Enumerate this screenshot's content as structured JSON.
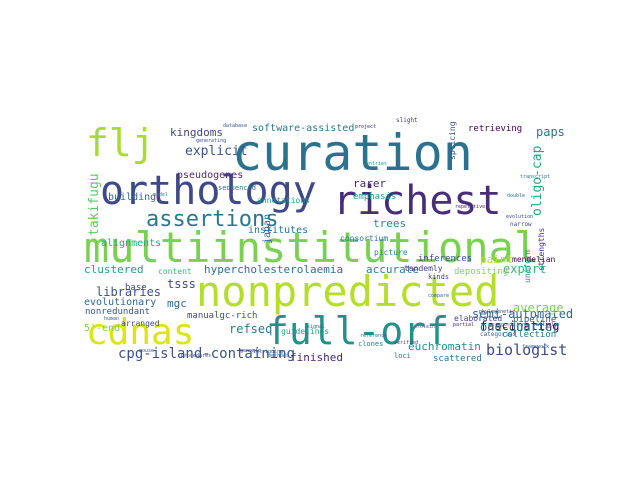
{
  "word_cloud": {
    "colormap": "viridis",
    "background": "#ffffff",
    "words": [
      {
        "text": "multiinstitutional",
        "color": "#7ad151"
      },
      {
        "text": "curation",
        "color": "#2c728e"
      },
      {
        "text": "nonpredicted",
        "color": "#b5de2b"
      },
      {
        "text": "orthology",
        "color": "#3e4989"
      },
      {
        "text": "full-orf",
        "color": "#21918c"
      },
      {
        "text": "richest",
        "color": "#472d7b"
      },
      {
        "text": "flj",
        "color": "#a8db34"
      },
      {
        "text": "cdnas",
        "color": "#dde318"
      },
      {
        "text": "assertions",
        "color": "#2a788e"
      },
      {
        "text": "cpg-island-containing",
        "color": "#3b528b"
      },
      {
        "text": "hypercholesterolaemia",
        "color": "#2c728e"
      },
      {
        "text": "biologist",
        "color": "#3e4989"
      },
      {
        "text": "oligo-cap",
        "color": "#22a884"
      },
      {
        "text": "takifugu",
        "color": "#5ec962"
      },
      {
        "text": "kingdoms",
        "color": "#414487"
      },
      {
        "text": "software-assisted",
        "color": "#2a788e"
      },
      {
        "text": "explicit",
        "color": "#3b528b"
      },
      {
        "text": "pseudogenes",
        "color": "#482878"
      },
      {
        "text": "semi-automated",
        "color": "#31688e"
      },
      {
        "text": "fascinating",
        "color": "#440154"
      },
      {
        "text": "accurate",
        "color": "#26828e"
      },
      {
        "text": "clustered",
        "color": "#1f9e89"
      },
      {
        "text": "libraries",
        "color": "#3b528b"
      },
      {
        "text": "evolutionary",
        "color": "#31688e"
      },
      {
        "text": "refseq",
        "color": "#2a788e"
      },
      {
        "text": "one-quarter",
        "color": "#2c728e"
      },
      {
        "text": "euchromatin",
        "color": "#21918c"
      },
      {
        "text": "finished",
        "color": "#482878"
      },
      {
        "text": "expert",
        "color": "#35b779"
      },
      {
        "text": "average",
        "color": "#7ad151"
      },
      {
        "text": "paint",
        "color": "#bddf26"
      },
      {
        "text": "paps",
        "color": "#2a788e"
      },
      {
        "text": "institutes",
        "color": "#2c728e"
      },
      {
        "text": "mgc",
        "color": "#31688e"
      },
      {
        "text": "tsss",
        "color": "#3e4989"
      },
      {
        "text": "trees",
        "color": "#23888e"
      },
      {
        "text": "rarer",
        "color": "#482878"
      },
      {
        "text": "emphasis",
        "color": "#1f9e89"
      },
      {
        "text": "inferences",
        "color": "#3b528b"
      },
      {
        "text": "retrieving",
        "color": "#440154"
      },
      {
        "text": "building",
        "color": "#31688e"
      },
      {
        "text": "alignments",
        "color": "#22a884"
      },
      {
        "text": "base",
        "color": "#3e4989"
      },
      {
        "text": "annotations",
        "color": "#1f9e89"
      },
      {
        "text": "consortium",
        "color": "#2c728e"
      },
      {
        "text": "picture",
        "color": "#23888e"
      },
      {
        "text": "depositing",
        "color": "#86d549"
      },
      {
        "text": "tandemly",
        "color": "#443a83"
      },
      {
        "text": "collection",
        "color": "#2c728e"
      },
      {
        "text": "pipeline",
        "color": "#3b528b"
      },
      {
        "text": "elaborated",
        "color": "#414487"
      },
      {
        "text": "scattered",
        "color": "#2a788e"
      },
      {
        "text": "nonredundant",
        "color": "#3b528b"
      },
      {
        "text": "guidelines",
        "color": "#1f9e89"
      },
      {
        "text": "manualgc-rich",
        "color": "#3e4989"
      },
      {
        "text": "content",
        "color": "#35b779"
      },
      {
        "text": "mendelian",
        "color": "#440154"
      },
      {
        "text": "japan",
        "color": "#31688e"
      },
      {
        "text": "sequenced",
        "color": "#2c728e"
      },
      {
        "text": "splicing",
        "color": "#3b528b"
      },
      {
        "text": "strengths",
        "color": "#472d7b"
      },
      {
        "text": "uniform",
        "color": "#21918c"
      },
      {
        "text": "categories",
        "color": "#31688e"
      },
      {
        "text": "narrow",
        "color": "#3e4989"
      },
      {
        "text": "slight",
        "color": "#443a83"
      },
      {
        "text": "loci",
        "color": "#31688e"
      },
      {
        "text": "clones",
        "color": "#2a788e"
      },
      {
        "text": "generating",
        "color": "#3b528b"
      },
      {
        "text": "kinds",
        "color": "#414487"
      },
      {
        "text": "project",
        "color": "#482878"
      },
      {
        "text": "5'-end",
        "color": "#7ad151"
      },
      {
        "text": "arranged",
        "color": "#3e4989"
      },
      {
        "text": "reference",
        "color": "#2c728e"
      },
      {
        "text": "compare",
        "color": "#31688e"
      },
      {
        "text": "entries",
        "color": "#21918c"
      },
      {
        "text": "verified",
        "color": "#414487"
      },
      {
        "text": "transcript",
        "color": "#2a788e"
      },
      {
        "text": "database",
        "color": "#3b528b"
      },
      {
        "text": "signal",
        "color": "#31688e"
      },
      {
        "text": "repetitive",
        "color": "#482878"
      },
      {
        "text": "evolution",
        "color": "#3e4989"
      },
      {
        "text": "protein",
        "color": "#2c728e"
      },
      {
        "text": "genomic",
        "color": "#414487"
      },
      {
        "text": "model",
        "color": "#21918c"
      },
      {
        "text": "human",
        "color": "#31688e"
      },
      {
        "text": "mouse",
        "color": "#3b528b"
      },
      {
        "text": "procedures",
        "color": "#3e4989"
      },
      {
        "text": "methods",
        "color": "#2c728e"
      },
      {
        "text": "partial",
        "color": "#482878"
      },
      {
        "text": "intriguing",
        "color": "#31688e"
      },
      {
        "text": "double",
        "color": "#2a788e"
      },
      {
        "text": "phylogenetic",
        "color": "#3e4989"
      },
      {
        "text": "composition",
        "color": "#1f9e89"
      },
      {
        "text": "article",
        "color": "#414487"
      },
      {
        "text": "framework",
        "color": "#31688e"
      }
    ]
  }
}
